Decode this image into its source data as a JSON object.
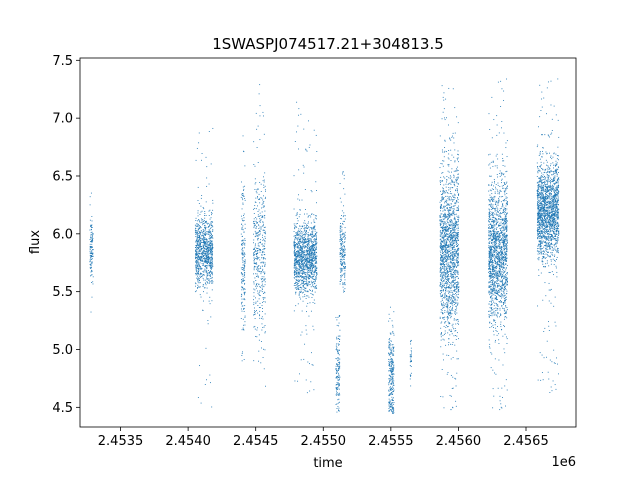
{
  "chart_data": {
    "type": "scatter",
    "title": "1SWASPJ074517.21+304813.5",
    "xlabel": "time",
    "ylabel": "flux",
    "x_offset_label": "1e6",
    "xlim": [
      2453200,
      2456870
    ],
    "ylim": [
      4.33,
      7.52
    ],
    "xticks": [
      2453500,
      2454000,
      2454500,
      2455000,
      2455500,
      2456000,
      2456500
    ],
    "xtick_labels": [
      "2.4535",
      "2.4540",
      "2.4545",
      "2.4550",
      "2.4555",
      "2.4560",
      "2.4565"
    ],
    "yticks": [
      4.5,
      5.0,
      5.5,
      6.0,
      6.5,
      7.0,
      7.5
    ],
    "ytick_labels": [
      "4.5",
      "5.0",
      "5.5",
      "6.0",
      "6.5",
      "7.0",
      "7.5"
    ],
    "grid": false,
    "color": "#1f77b4",
    "clusters": [
      {
        "x_start": 2453270,
        "x_end": 2453295,
        "y_center": 5.85,
        "y_spread": 0.15,
        "y_min": 5.2,
        "y_max": 6.45,
        "n": 120
      },
      {
        "x_start": 2454050,
        "x_end": 2454180,
        "y_center": 5.85,
        "y_spread": 0.15,
        "y_min": 4.5,
        "y_max": 6.95,
        "n": 900
      },
      {
        "x_start": 2454390,
        "x_end": 2454420,
        "y_center": 5.75,
        "y_spread": 0.35,
        "y_min": 4.9,
        "y_max": 6.9,
        "n": 180
      },
      {
        "x_start": 2454480,
        "x_end": 2454570,
        "y_center": 5.8,
        "y_spread": 0.35,
        "y_min": 4.5,
        "y_max": 7.3,
        "n": 420
      },
      {
        "x_start": 2454780,
        "x_end": 2454950,
        "y_center": 5.8,
        "y_spread": 0.15,
        "y_min": 4.6,
        "y_max": 7.2,
        "n": 1300
      },
      {
        "x_start": 2455090,
        "x_end": 2455120,
        "y_center": 4.9,
        "y_spread": 0.2,
        "y_min": 4.45,
        "y_max": 5.3,
        "n": 140
      },
      {
        "x_start": 2455120,
        "x_end": 2455160,
        "y_center": 5.85,
        "y_spread": 0.15,
        "y_min": 5.5,
        "y_max": 6.55,
        "n": 200
      },
      {
        "x_start": 2455480,
        "x_end": 2455520,
        "y_center": 4.75,
        "y_spread": 0.2,
        "y_min": 4.45,
        "y_max": 5.4,
        "n": 260
      },
      {
        "x_start": 2455640,
        "x_end": 2455650,
        "y_center": 4.9,
        "y_spread": 0.1,
        "y_min": 4.6,
        "y_max": 5.1,
        "n": 30
      },
      {
        "x_start": 2455860,
        "x_end": 2456000,
        "y_center": 5.85,
        "y_spread": 0.35,
        "y_min": 4.45,
        "y_max": 7.35,
        "n": 1600
      },
      {
        "x_start": 2456220,
        "x_end": 2456360,
        "y_center": 5.85,
        "y_spread": 0.3,
        "y_min": 4.45,
        "y_max": 7.35,
        "n": 1600
      },
      {
        "x_start": 2456580,
        "x_end": 2456740,
        "y_center": 6.2,
        "y_spread": 0.2,
        "y_min": 4.6,
        "y_max": 7.35,
        "n": 1700
      }
    ]
  }
}
